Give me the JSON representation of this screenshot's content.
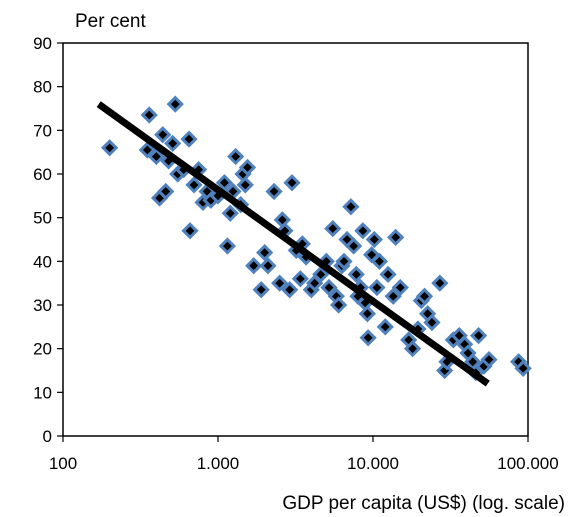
{
  "chart_data": {
    "type": "scatter",
    "title": "",
    "ylabel": "Per cent",
    "xlabel": "GDP per capita (US$) (log. scale)",
    "x_scale": "log",
    "xlim": [
      100,
      100000
    ],
    "ylim": [
      0,
      90
    ],
    "x_ticks": [
      100,
      1000,
      10000,
      100000
    ],
    "x_tick_labels": [
      "100",
      "1.000",
      "10.000",
      "100.000"
    ],
    "y_ticks": [
      0,
      10,
      20,
      30,
      40,
      50,
      60,
      70,
      80,
      90
    ],
    "y_tick_labels": [
      "0",
      "10",
      "20",
      "30",
      "40",
      "50",
      "60",
      "70",
      "80",
      "90"
    ],
    "grid": false,
    "legend": "none",
    "colors": {
      "marker_fill": "#000000",
      "marker_edge": "#4f81bd",
      "trend": "#000000"
    },
    "trendline": {
      "x": [
        170,
        55000
      ],
      "y": [
        76,
        12
      ]
    },
    "series": [
      {
        "points": [
          {
            "x": 200,
            "y": 66
          },
          {
            "x": 350,
            "y": 65.5
          },
          {
            "x": 360,
            "y": 73.5
          },
          {
            "x": 400,
            "y": 64
          },
          {
            "x": 420,
            "y": 54.5
          },
          {
            "x": 440,
            "y": 69
          },
          {
            "x": 460,
            "y": 56
          },
          {
            "x": 480,
            "y": 63
          },
          {
            "x": 510,
            "y": 67
          },
          {
            "x": 530,
            "y": 76
          },
          {
            "x": 550,
            "y": 60
          },
          {
            "x": 600,
            "y": 61
          },
          {
            "x": 650,
            "y": 68
          },
          {
            "x": 660,
            "y": 47
          },
          {
            "x": 700,
            "y": 57.5
          },
          {
            "x": 750,
            "y": 61
          },
          {
            "x": 800,
            "y": 53.5
          },
          {
            "x": 850,
            "y": 56
          },
          {
            "x": 900,
            "y": 54
          },
          {
            "x": 1000,
            "y": 55
          },
          {
            "x": 1100,
            "y": 58
          },
          {
            "x": 1150,
            "y": 43.5
          },
          {
            "x": 1200,
            "y": 51
          },
          {
            "x": 1250,
            "y": 56
          },
          {
            "x": 1300,
            "y": 64
          },
          {
            "x": 1400,
            "y": 53
          },
          {
            "x": 1450,
            "y": 60
          },
          {
            "x": 1500,
            "y": 57.5
          },
          {
            "x": 1550,
            "y": 61.5
          },
          {
            "x": 1700,
            "y": 39
          },
          {
            "x": 1900,
            "y": 33.5
          },
          {
            "x": 2000,
            "y": 42
          },
          {
            "x": 2100,
            "y": 39
          },
          {
            "x": 2300,
            "y": 56
          },
          {
            "x": 2500,
            "y": 35
          },
          {
            "x": 2600,
            "y": 49.5
          },
          {
            "x": 2700,
            "y": 47
          },
          {
            "x": 2900,
            "y": 33.5
          },
          {
            "x": 3000,
            "y": 58
          },
          {
            "x": 3200,
            "y": 42.5
          },
          {
            "x": 3400,
            "y": 36
          },
          {
            "x": 3500,
            "y": 44
          },
          {
            "x": 3700,
            "y": 41
          },
          {
            "x": 4000,
            "y": 33.5
          },
          {
            "x": 4200,
            "y": 35
          },
          {
            "x": 4600,
            "y": 37
          },
          {
            "x": 5000,
            "y": 40
          },
          {
            "x": 5200,
            "y": 34
          },
          {
            "x": 5500,
            "y": 47.5
          },
          {
            "x": 5800,
            "y": 32
          },
          {
            "x": 6000,
            "y": 30
          },
          {
            "x": 6300,
            "y": 39
          },
          {
            "x": 6500,
            "y": 40
          },
          {
            "x": 6800,
            "y": 45
          },
          {
            "x": 7200,
            "y": 52.5
          },
          {
            "x": 7500,
            "y": 43.5
          },
          {
            "x": 7800,
            "y": 37
          },
          {
            "x": 8000,
            "y": 32
          },
          {
            "x": 8300,
            "y": 34
          },
          {
            "x": 8600,
            "y": 47
          },
          {
            "x": 8900,
            "y": 30.5
          },
          {
            "x": 9200,
            "y": 28
          },
          {
            "x": 9300,
            "y": 22.5
          },
          {
            "x": 9800,
            "y": 41.5
          },
          {
            "x": 10200,
            "y": 45
          },
          {
            "x": 10600,
            "y": 34
          },
          {
            "x": 11000,
            "y": 40
          },
          {
            "x": 12000,
            "y": 25
          },
          {
            "x": 12500,
            "y": 37
          },
          {
            "x": 13500,
            "y": 32
          },
          {
            "x": 14000,
            "y": 45.5
          },
          {
            "x": 15000,
            "y": 34
          },
          {
            "x": 17000,
            "y": 22
          },
          {
            "x": 18000,
            "y": 20
          },
          {
            "x": 19500,
            "y": 24.5
          },
          {
            "x": 20500,
            "y": 31
          },
          {
            "x": 21500,
            "y": 32
          },
          {
            "x": 22500,
            "y": 28
          },
          {
            "x": 24000,
            "y": 26
          },
          {
            "x": 27000,
            "y": 35
          },
          {
            "x": 29000,
            "y": 15
          },
          {
            "x": 30000,
            "y": 17
          },
          {
            "x": 33000,
            "y": 22
          },
          {
            "x": 36000,
            "y": 23
          },
          {
            "x": 39000,
            "y": 21
          },
          {
            "x": 41000,
            "y": 19
          },
          {
            "x": 44000,
            "y": 17
          },
          {
            "x": 46000,
            "y": 14.5
          },
          {
            "x": 48000,
            "y": 23
          },
          {
            "x": 52000,
            "y": 16
          },
          {
            "x": 56000,
            "y": 17.5
          },
          {
            "x": 87000,
            "y": 17
          },
          {
            "x": 93000,
            "y": 15.5
          }
        ]
      }
    ]
  }
}
